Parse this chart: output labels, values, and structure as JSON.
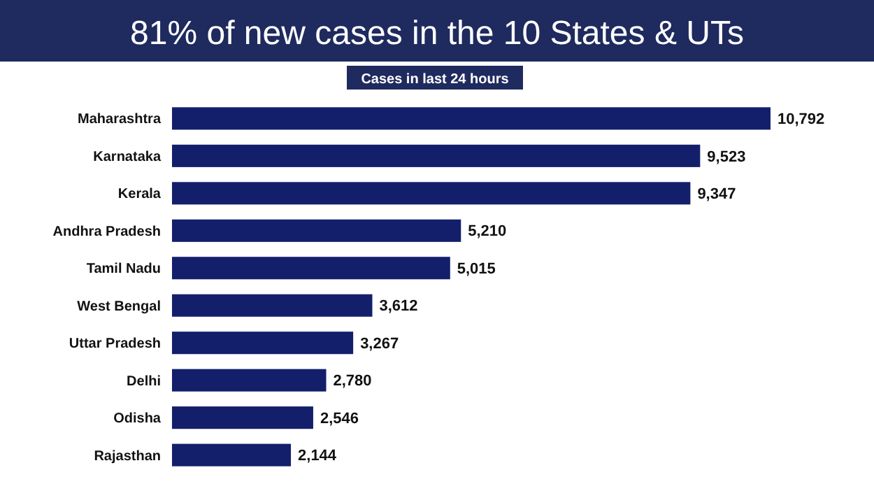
{
  "chart_data": {
    "type": "bar",
    "orientation": "horizontal",
    "title": "81% of new cases in the 10 States & UTs",
    "subtitle": "Cases in last 24 hours",
    "categories": [
      "Maharashtra",
      "Karnataka",
      "Kerala",
      "Andhra Pradesh",
      "Tamil Nadu",
      "West Bengal",
      "Uttar Pradesh",
      "Delhi",
      "Odisha",
      "Rajasthan"
    ],
    "values": [
      10792,
      9523,
      9347,
      5210,
      5015,
      3612,
      3267,
      2780,
      2546,
      2144
    ],
    "value_labels": [
      "10,792",
      "9,523",
      "9,347",
      "5,210",
      "5,015",
      "3,612",
      "3,267",
      "2,780",
      "2,546",
      "2,144"
    ],
    "color": "#141f6b"
  }
}
